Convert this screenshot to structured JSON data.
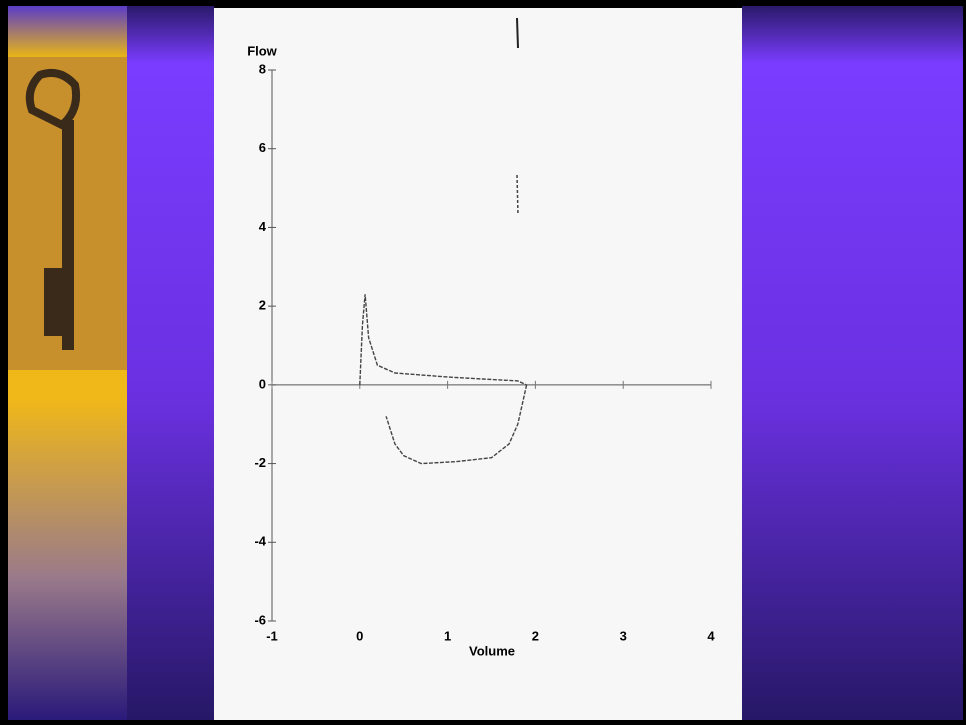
{
  "chart_data": {
    "type": "line",
    "y_label": "Flow",
    "x_label": "Volume",
    "xlim": [
      -1,
      4
    ],
    "ylim": [
      -6,
      8
    ],
    "xticks": [
      -1,
      0,
      1,
      2,
      3,
      4
    ],
    "yticks": [
      -6,
      -4,
      -2,
      0,
      2,
      4,
      6,
      8
    ],
    "series": [
      {
        "color": "#444444",
        "x": [
          0,
          0.03,
          0.06,
          0.1,
          0.2,
          0.4,
          0.7,
          1.0,
          1.4,
          1.8,
          1.9
        ],
        "values": [
          0,
          1.5,
          2.3,
          1.2,
          0.5,
          0.3,
          0.25,
          0.2,
          0.15,
          0.1,
          0
        ]
      },
      {
        "color": "#444444",
        "x": [
          1.9,
          1.8,
          1.7,
          1.5,
          1.1,
          0.7,
          0.5,
          0.4,
          0.3
        ],
        "values": [
          0,
          -1.0,
          -1.5,
          -1.85,
          -1.95,
          -2.0,
          -1.8,
          -1.5,
          -0.8
        ]
      }
    ]
  }
}
